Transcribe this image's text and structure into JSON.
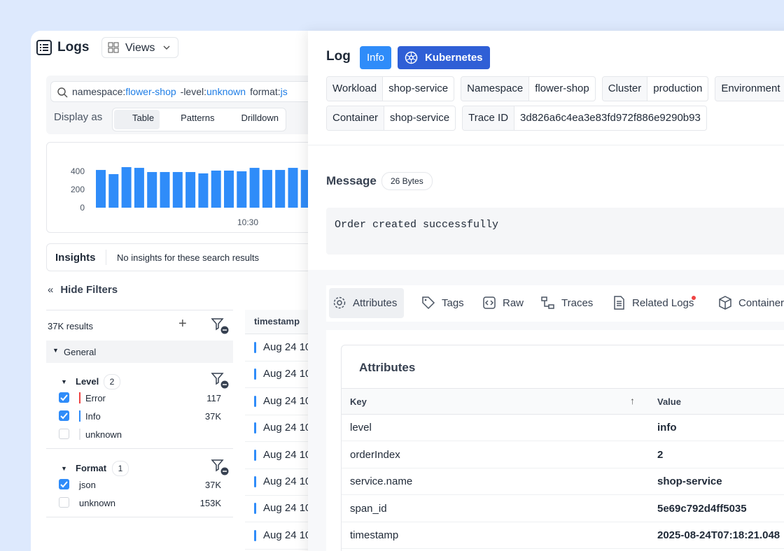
{
  "header": {
    "title": "Logs",
    "views": "Views"
  },
  "search": {
    "query": [
      "namespace:",
      "flower-shop",
      "-level:",
      "unknown",
      "format:",
      "js"
    ],
    "display_as": "Display as",
    "modes": [
      "Table",
      "Patterns",
      "Drilldown"
    ]
  },
  "histogram": {
    "type": "bar",
    "values": [
      415,
      369,
      446,
      438,
      392,
      392,
      392,
      392,
      377,
      408,
      408,
      400,
      438,
      415,
      415,
      438,
      415
    ],
    "color": "#2f8cf9",
    "ylim": [
      0,
      400
    ],
    "yticks": [
      0,
      200,
      400
    ],
    "x_tick_label": "10:30"
  },
  "insights": {
    "title": "Insights",
    "text": "No insights for these search results"
  },
  "filters": {
    "hide": "Hide Filters",
    "results": "37K results",
    "general": "General",
    "groups": [
      {
        "name": "Level",
        "count": "2",
        "items": [
          {
            "label": "Error",
            "count": "117",
            "checked": true,
            "color": "#ef4444"
          },
          {
            "label": "Info",
            "count": "37K",
            "checked": true,
            "color": "#2f8cf9"
          },
          {
            "label": "unknown",
            "checked": false,
            "color": "#e5e7eb"
          }
        ]
      },
      {
        "name": "Format",
        "count": "1",
        "items": [
          {
            "label": "json",
            "count": "37K",
            "checked": true
          },
          {
            "label": "unknown",
            "count": "153K",
            "checked": false
          }
        ]
      }
    ]
  },
  "table": {
    "header": "timestamp",
    "rows": [
      "Aug 24 10",
      "Aug 24 10",
      "Aug 24 10",
      "Aug 24 10",
      "Aug 24 10",
      "Aug 24 10",
      "Aug 24 10",
      "Aug 24 10"
    ]
  },
  "detail": {
    "title": "Log",
    "badges": [
      "Info",
      "Kubernetes"
    ],
    "field_rows": [
      [
        {
          "key": "Workload",
          "value": "shop-service"
        },
        {
          "key": "Namespace",
          "value": "flower-shop"
        },
        {
          "key": "Cluster",
          "value": "production"
        },
        {
          "key": "Environment"
        }
      ],
      [
        {
          "key": "Container",
          "value": "shop-service"
        },
        {
          "key": "Trace ID",
          "value": "3d826a6c4ea3e83fd972f886e9290b93"
        }
      ]
    ],
    "message": {
      "title": "Message",
      "size": "26 Bytes",
      "text": "Order created successfully"
    },
    "tabs": [
      "Attributes",
      "Tags",
      "Raw",
      "Traces",
      "Related Logs",
      "Container"
    ],
    "attributes": {
      "title": "Attributes",
      "columns": [
        "Key",
        "Value"
      ],
      "rows": [
        [
          "level",
          "info"
        ],
        [
          "orderIndex",
          "2"
        ],
        [
          "service.name",
          "shop-service"
        ],
        [
          "span_id",
          "5e69c792d4ff5035"
        ],
        [
          "timestamp",
          "2025-08-24T07:18:21.048"
        ]
      ]
    }
  }
}
